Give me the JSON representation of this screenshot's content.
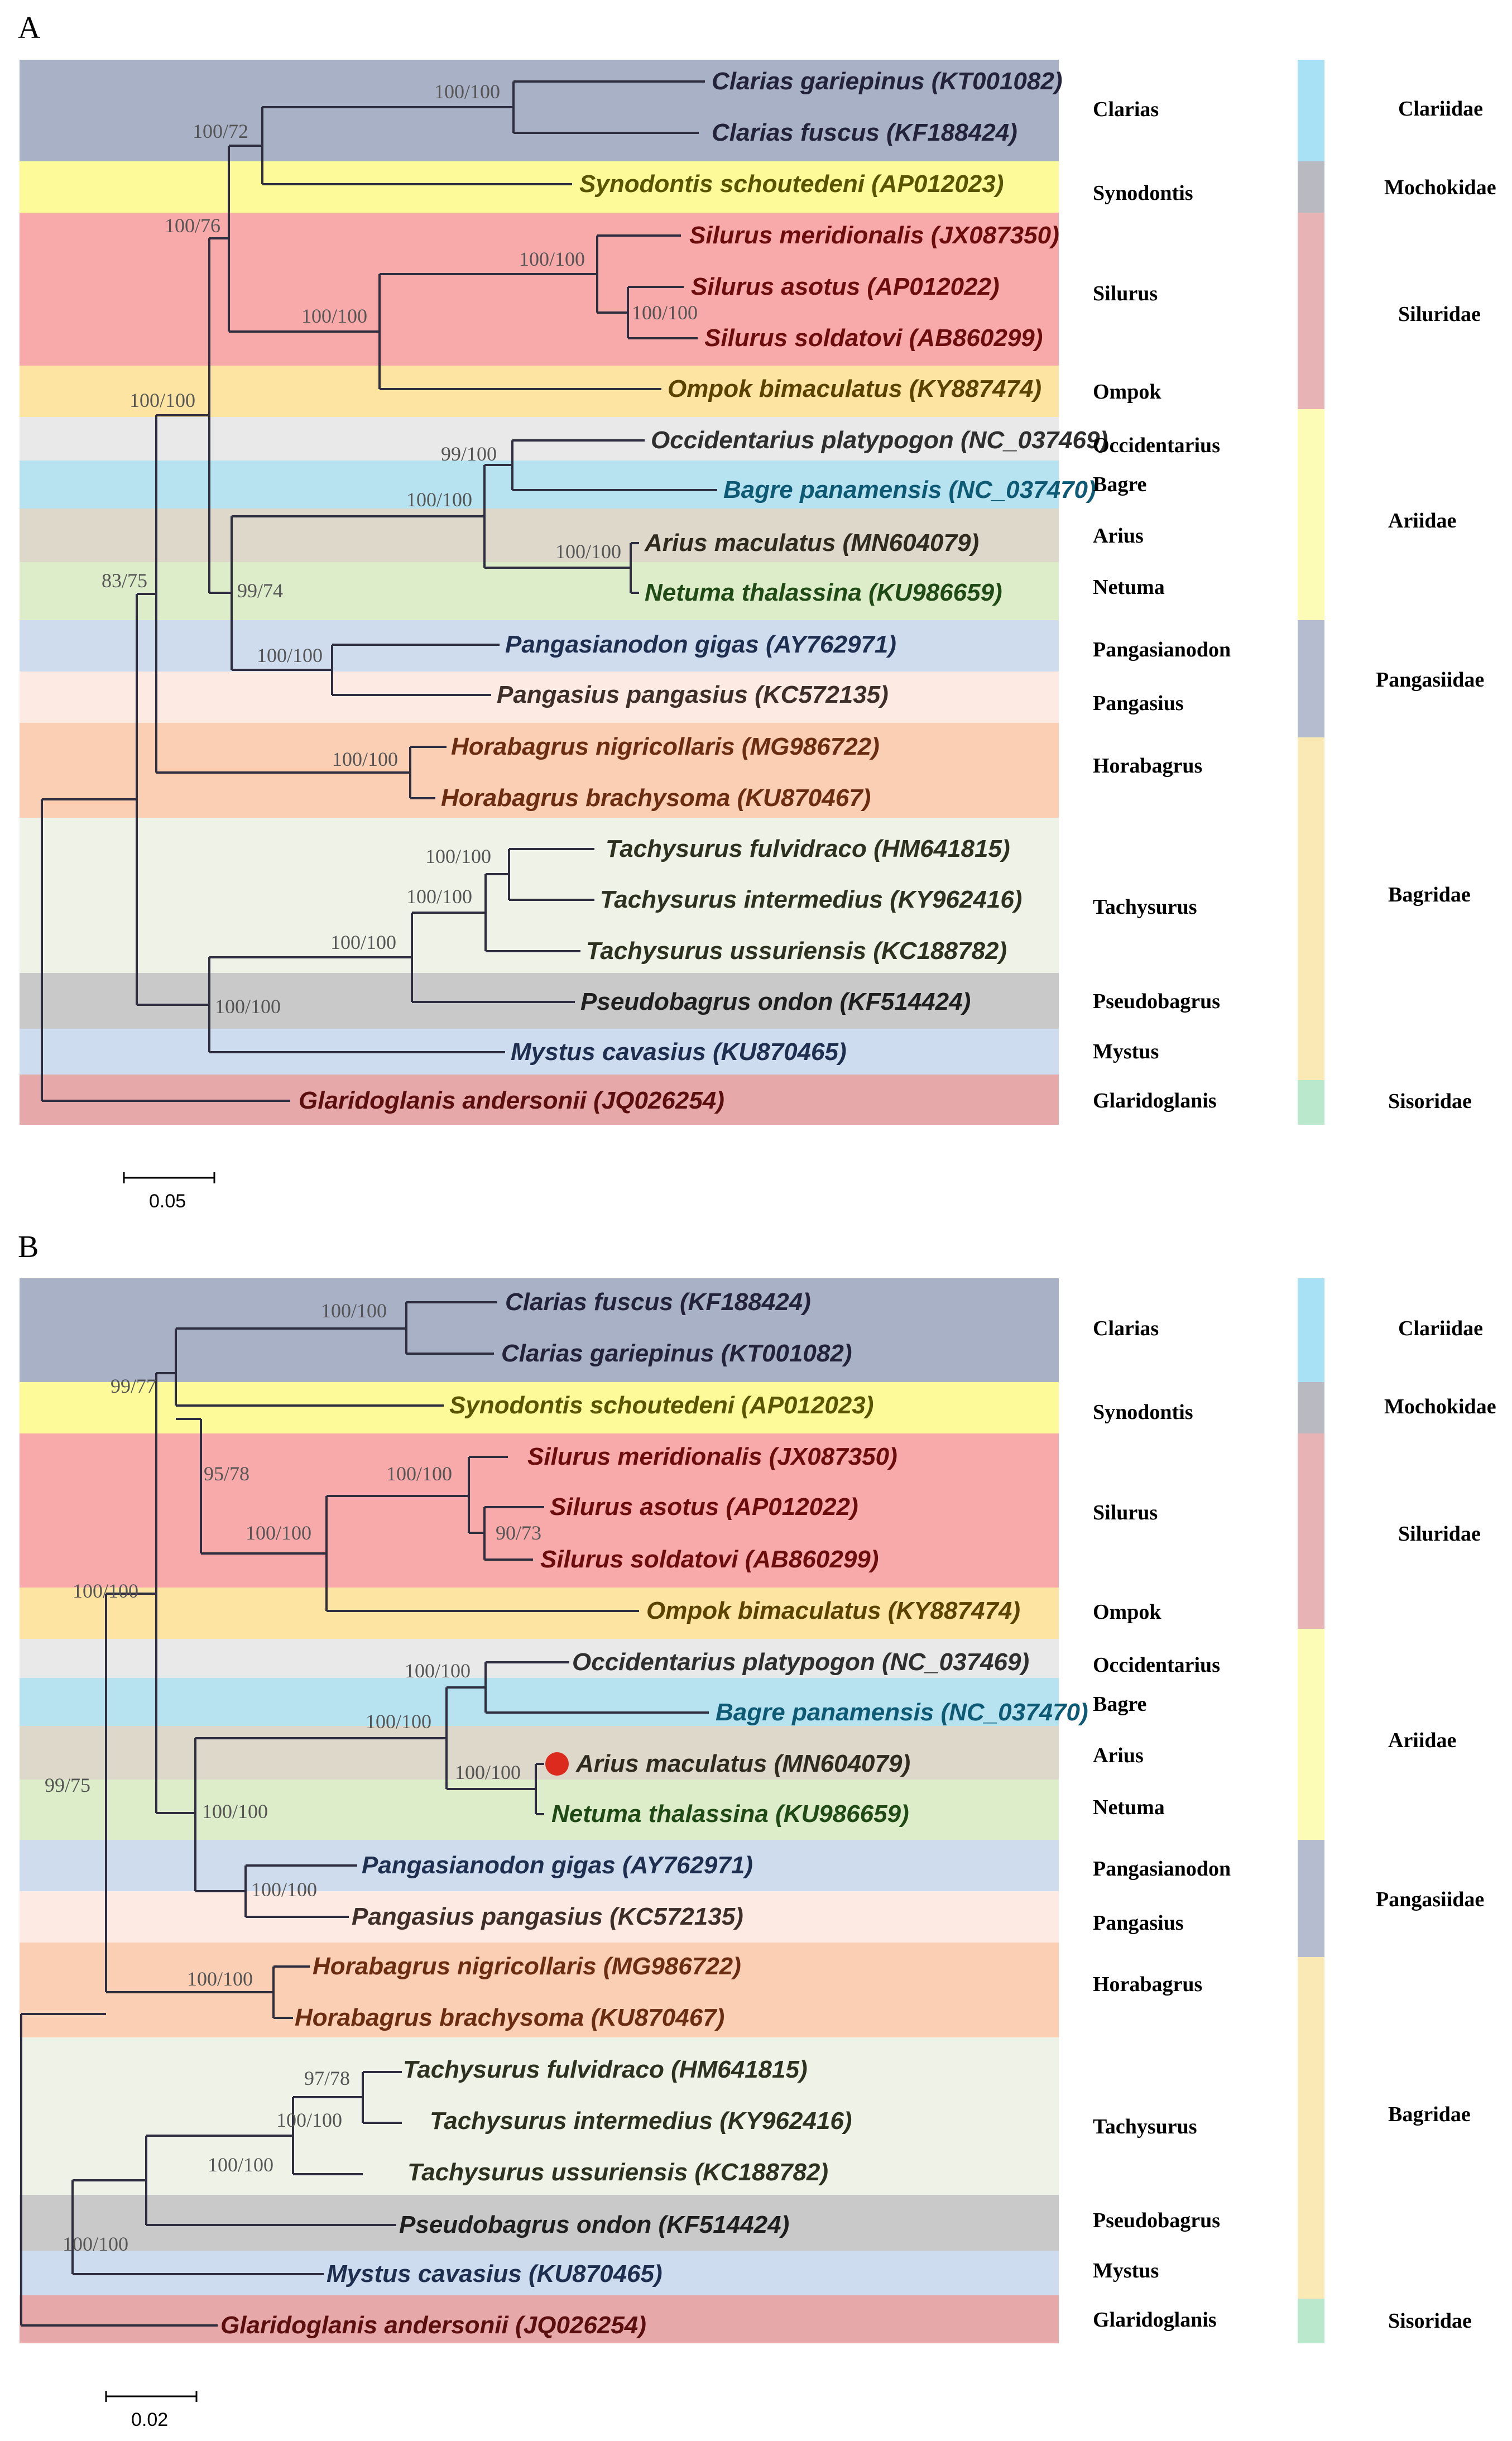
{
  "colors": {
    "clarias": "#a9b1c7",
    "synodontis": "#fdfa9a",
    "silurus": "#f8a9a9",
    "ompok": "#fde4a3",
    "occidentarius": "#e9e9e9",
    "bagre": "#b7e3f0",
    "arius": "#ddd8c9",
    "netuma": "#ddedc9",
    "pangasianodon": "#cfdcee",
    "pangasius": "#fdeae2",
    "horabagrus": "#fbcfb4",
    "tachysurus": "#eff2e6",
    "pseudobagrus": "#c9c9c9",
    "mystus": "#cddcef",
    "glaridoglanis": "#e6a8a8",
    "fam_clariidae": "#a8e1f5",
    "fam_mochokidae": "#b9b9c1",
    "fam_siluridae": "#e8b3b5",
    "fam_ariidae": "#fdfcb7",
    "fam_pangasiidae": "#b6bcd0",
    "fam_bagridae": "#fbe9b5",
    "fam_sisoridae": "#b9e8cc",
    "marker": "#dd2a1f",
    "text_clarias": "#22223a",
    "text_synodontis": "#5a5400",
    "text_silurus": "#6b0d0d",
    "text_ompok": "#5a4200",
    "text_occidentarius": "#2e2e2e",
    "text_bagre": "#0e5a74",
    "text_arius": "#2e2a1e",
    "text_netuma": "#1f4a16",
    "text_pangasianodon": "#1d2e4e",
    "text_pangasius": "#3e2e2a",
    "text_horabagrus": "#6a2d12",
    "text_tachysurus": "#2e3020",
    "text_pseudobagrus": "#1e1e1e",
    "text_mystus": "#1d2e4e",
    "text_glaridoglanis": "#5a0e0e"
  },
  "panel_a": {
    "letter": "A",
    "scale_label": "0.05",
    "tips": [
      "Clarias gariepinus (KT001082)",
      "Clarias fuscus (KF188424)",
      "Synodontis schoutedeni (AP012023)",
      "Silurus meridionalis (JX087350)",
      "Silurus asotus (AP012022)",
      "Silurus soldatovi (AB860299)",
      "Ompok bimaculatus (KY887474)",
      "Occidentarius platypogon (NC_037469)",
      "Bagre panamensis (NC_037470)",
      "Arius maculatus (MN604079)",
      "Netuma thalassina (KU986659)",
      "Pangasianodon gigas (AY762971)",
      "Pangasius pangasius (KC572135)",
      "Horabagrus nigricollaris (MG986722)",
      "Horabagrus brachysoma (KU870467)",
      "Tachysurus fulvidraco (HM641815)",
      "Tachysurus intermedius (KY962416)",
      "Tachysurus ussuriensis (KC188782)",
      "Pseudobagrus ondon (KF514424)",
      "Mystus cavasius (KU870465)",
      "Glaridoglanis andersonii (JQ026254)"
    ],
    "supports": [
      "100/100",
      "100/72",
      "100/76",
      "100/100",
      "100/100",
      "100/100",
      "100/100",
      "99/100",
      "100/100",
      "100/100",
      "99/74",
      "100/100",
      "100/100",
      "83/75",
      "100/100",
      "100/100",
      "100/100",
      "100/100"
    ]
  },
  "panel_b": {
    "letter": "B",
    "scale_label": "0.02",
    "tips": [
      "Clarias fuscus (KF188424)",
      "Clarias gariepinus (KT001082)",
      "Synodontis schoutedeni (AP012023)",
      "Silurus meridionalis (JX087350)",
      "Silurus asotus (AP012022)",
      "Silurus soldatovi (AB860299)",
      "Ompok bimaculatus (KY887474)",
      "Occidentarius platypogon (NC_037469)",
      "Bagre panamensis (NC_037470)",
      "Arius maculatus (MN604079)",
      "Netuma thalassina (KU986659)",
      "Pangasianodon gigas (AY762971)",
      "Pangasius pangasius (KC572135)",
      "Horabagrus nigricollaris (MG986722)",
      "Horabagrus brachysoma (KU870467)",
      "Tachysurus fulvidraco (HM641815)",
      "Tachysurus intermedius (KY962416)",
      "Tachysurus ussuriensis (KC188782)",
      "Pseudobagrus ondon (KF514424)",
      "Mystus cavasius (KU870465)",
      "Glaridoglanis andersonii (JQ026254)"
    ],
    "supports": [
      "100/100",
      "99/77",
      "95/78",
      "100/100",
      "100/100",
      "90/73",
      "100/100",
      "100/100",
      "100/100",
      "100/100",
      "100/100",
      "100/100",
      "100/100",
      "99/75",
      "97/78",
      "100/100",
      "100/100",
      "100/100"
    ]
  },
  "genus_labels": [
    "Clarias",
    "Synodontis",
    "Silurus",
    "Ompok",
    "Occidentarius",
    "Bagre",
    "Arius",
    "Netuma",
    "Pangasianodon",
    "Pangasius",
    "Horabagrus",
    "Tachysurus",
    "Pseudobagrus",
    "Mystus",
    "Glaridoglanis"
  ],
  "family_labels": [
    "Clariidae",
    "Mochokidae",
    "Siluridae",
    "Ariidae",
    "Pangasiidae",
    "Bagridae",
    "Sisoridae"
  ]
}
